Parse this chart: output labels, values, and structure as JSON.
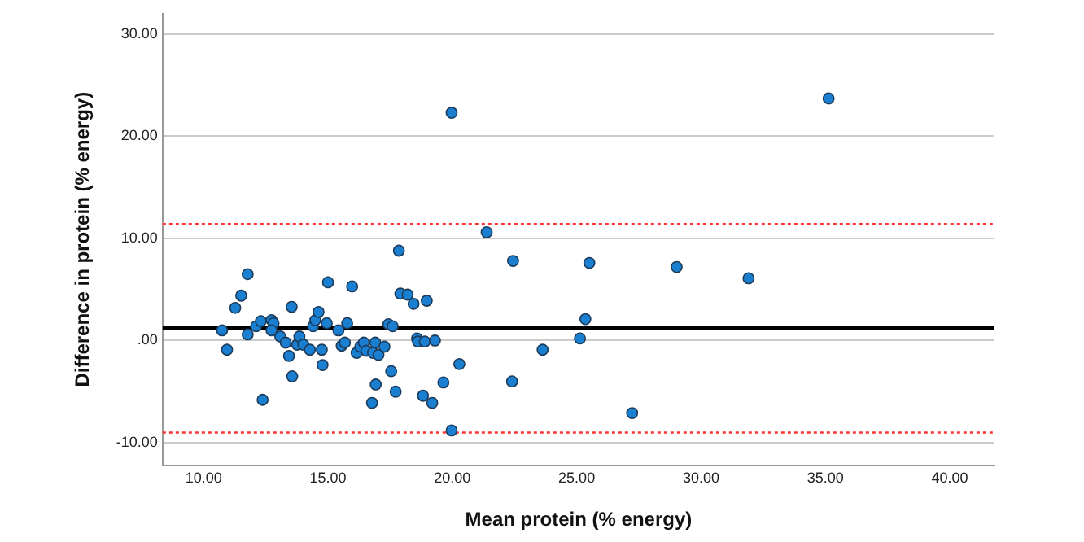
{
  "chart_data": {
    "type": "scatter",
    "xlabel": "Mean protein (% energy)",
    "ylabel": "Difference in protein (% energy)",
    "xlim": [
      8.35,
      41.8
    ],
    "ylim": [
      -12.2,
      32
    ],
    "xticks": [
      {
        "value": 10,
        "label": "10.00"
      },
      {
        "value": 15,
        "label": "15.00"
      },
      {
        "value": 20,
        "label": "20.00"
      },
      {
        "value": 25,
        "label": "25.00"
      },
      {
        "value": 30,
        "label": "30.00"
      },
      {
        "value": 35,
        "label": "35.00"
      },
      {
        "value": 40,
        "label": "40.00"
      }
    ],
    "yticks": [
      {
        "value": -10,
        "label": "-10.00"
      },
      {
        "value": 0,
        "label": ".00"
      },
      {
        "value": 10,
        "label": "10.00"
      },
      {
        "value": 20,
        "label": "20.00"
      },
      {
        "value": 30,
        "label": "30.00"
      }
    ],
    "grid": "y",
    "marker": "circle",
    "ref_lines": [
      {
        "axis": "y",
        "value": 1.2,
        "color": "#000000",
        "line_style": "solid"
      },
      {
        "axis": "y",
        "value": 11.4,
        "color": "#ff3333",
        "line_style": "dotted"
      },
      {
        "axis": "y",
        "value": -9.0,
        "color": "#ff3333",
        "line_style": "dotted"
      }
    ],
    "series": [
      {
        "color": "#1a7fd0",
        "x": [
          10.74,
          10.94,
          11.27,
          11.51,
          11.77,
          11.77,
          12.11,
          12.3,
          12.37,
          12.73,
          12.81,
          12.73,
          13.08,
          13.3,
          13.54,
          13.43,
          13.56,
          13.76,
          13.85,
          14.01,
          14.27,
          14.4,
          14.49,
          14.62,
          14.75,
          14.78,
          14.95,
          15.0,
          15.42,
          15.55,
          15.68,
          15.77,
          15.97,
          16.15,
          16.3,
          16.44,
          16.54,
          17.85,
          17.91,
          18.2,
          18.44,
          18.97,
          17.43,
          17.6,
          16.9,
          16.81,
          17.03,
          17.27,
          17.54,
          16.92,
          16.77,
          17.72,
          18.58,
          18.62,
          18.89,
          19.3,
          18.82,
          19.19,
          19.64,
          20.28,
          19.97,
          21.38,
          22.44,
          23.63,
          22.4,
          19.97,
          35.13,
          25.51,
          29.02,
          31.91,
          25.35,
          25.13,
          27.23
        ],
        "values": [
          1.0,
          -0.9,
          3.2,
          4.4,
          6.5,
          0.6,
          1.4,
          1.9,
          -5.8,
          2.0,
          1.7,
          1.0,
          0.4,
          -0.2,
          3.3,
          -1.5,
          -3.5,
          -0.4,
          0.4,
          -0.4,
          -0.9,
          1.4,
          2.0,
          2.8,
          -0.9,
          -2.4,
          1.7,
          5.7,
          1.0,
          -0.5,
          -0.2,
          1.7,
          5.3,
          -1.2,
          -0.6,
          -0.2,
          -1.0,
          8.8,
          4.6,
          4.5,
          3.6,
          3.9,
          1.6,
          1.4,
          -0.2,
          -1.2,
          -1.4,
          -0.6,
          -3.0,
          -4.3,
          -6.1,
          -5.0,
          0.2,
          -0.1,
          -0.1,
          0.0,
          -5.4,
          -6.1,
          -4.1,
          -2.3,
          -8.8,
          10.6,
          7.8,
          -0.9,
          -4.0,
          22.3,
          23.7,
          7.6,
          7.2,
          6.1,
          2.1,
          0.2,
          -7.1
        ]
      }
    ]
  }
}
